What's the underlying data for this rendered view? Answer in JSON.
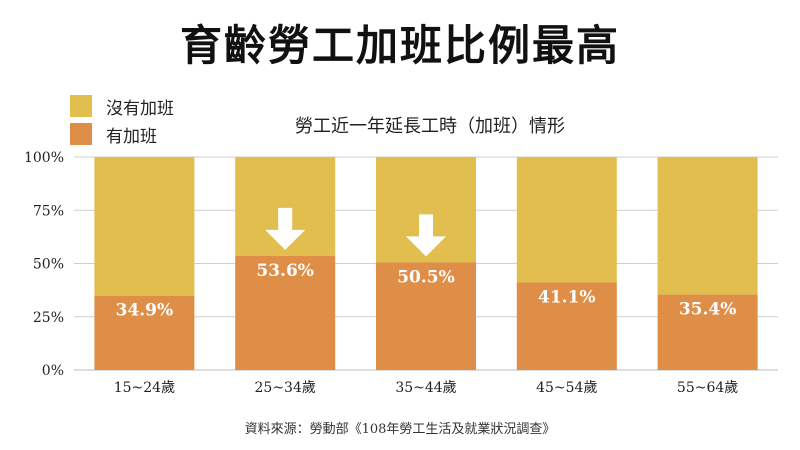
{
  "title": "育齡勞工加班比例最高",
  "legend": [
    {
      "label": "沒有加班",
      "color": "#E2BE4E"
    },
    {
      "label": "有加班",
      "color": "#DE8E47"
    }
  ],
  "source": "資料來源：勞動部《108年勞工生活及就業狀況調查》",
  "chart_data": {
    "type": "bar",
    "stacked": true,
    "title": "勞工近一年延長工時（加班）情形",
    "categories": [
      "15~24歲",
      "25~34歲",
      "35~44歲",
      "45~54歲",
      "55~64歲"
    ],
    "series": [
      {
        "name": "有加班",
        "values": [
          34.9,
          53.6,
          50.5,
          41.1,
          35.4
        ],
        "color": "#DE8E47"
      },
      {
        "name": "沒有加班",
        "values": [
          65.1,
          46.4,
          49.5,
          58.9,
          64.6
        ],
        "color": "#E2BE4E"
      }
    ],
    "data_labels": [
      "34.9%",
      "53.6%",
      "50.5%",
      "41.1%",
      "35.4%"
    ],
    "highlight_arrows": [
      false,
      true,
      true,
      false,
      false
    ],
    "ylim": [
      0,
      100
    ],
    "yticks": [
      "0%",
      "25%",
      "50%",
      "75%",
      "100%"
    ],
    "ytick_values": [
      0,
      25,
      50,
      75,
      100
    ],
    "grid": true
  }
}
